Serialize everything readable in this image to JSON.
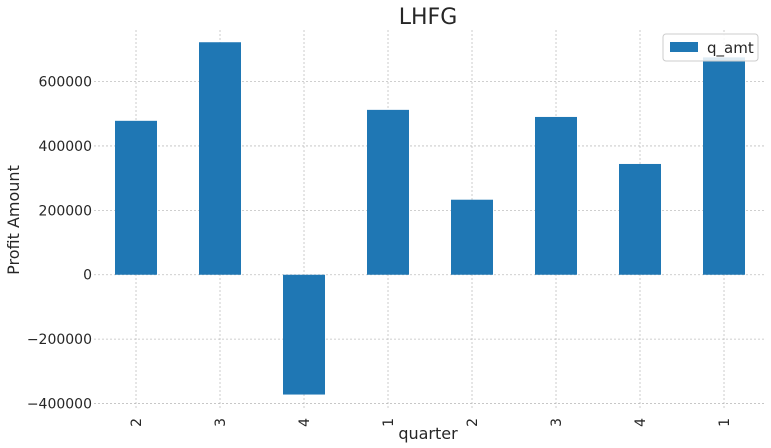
{
  "chart_data": {
    "type": "bar",
    "title": "LHFG",
    "xlabel": "quarter",
    "ylabel": "Profit Amount",
    "categories": [
      "2",
      "3",
      "4",
      "1",
      "2",
      "3",
      "4",
      "1"
    ],
    "series": [
      {
        "name": "q_amt",
        "color": "#1f77b4",
        "values": [
          478000,
          722000,
          -372000,
          512000,
          233000,
          490000,
          344000,
          675000
        ]
      }
    ],
    "ylim": [
      -420000,
      760000
    ],
    "yticks": [
      -400000,
      -200000,
      0,
      200000,
      400000,
      600000
    ],
    "ytick_labels": [
      "−400000",
      "−200000",
      "0",
      "200000",
      "400000",
      "600000"
    ],
    "grid": true,
    "legend_position": "top-right"
  }
}
